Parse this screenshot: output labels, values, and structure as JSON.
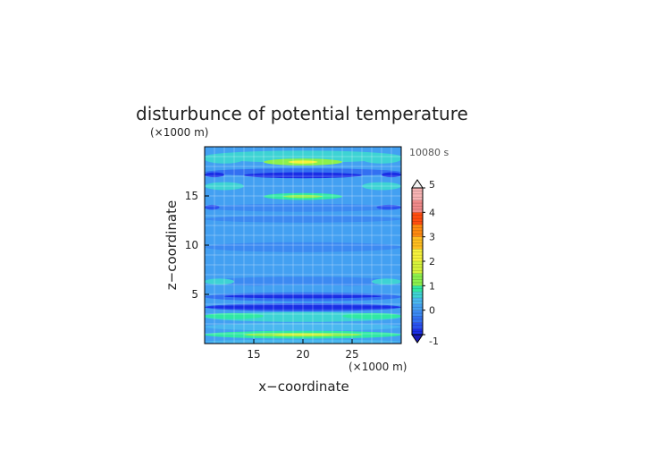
{
  "chart_data": {
    "type": "heatmap",
    "title": "disturbunce of potential temperature",
    "time_label": "10080 s",
    "xlabel": "x−coordinate",
    "ylabel": "z−coordinate",
    "x_unit": "(×1000 m)",
    "y_unit": "(×1000 m)",
    "xlim": [
      10,
      30
    ],
    "ylim": [
      0,
      20
    ],
    "x_ticks": [
      15,
      20,
      25
    ],
    "y_ticks": [
      5,
      10,
      15
    ],
    "grid": true,
    "colorbar": {
      "min": -1,
      "max": 5,
      "ticks": [
        -1,
        0,
        1,
        2,
        3,
        4,
        5
      ],
      "levels": [
        {
          "from": -1.0,
          "to": -0.75,
          "color": "#1a2ee6"
        },
        {
          "from": -0.75,
          "to": -0.5,
          "color": "#2a52ef"
        },
        {
          "from": -0.5,
          "to": -0.25,
          "color": "#3370f2"
        },
        {
          "from": -0.25,
          "to": 0.0,
          "color": "#3c8af2"
        },
        {
          "from": 0.0,
          "to": 0.25,
          "color": "#43a0f2"
        },
        {
          "from": 0.25,
          "to": 0.5,
          "color": "#4ab8f0"
        },
        {
          "from": 0.5,
          "to": 0.75,
          "color": "#3ed3d4"
        },
        {
          "from": 0.75,
          "to": 1.0,
          "color": "#30e8a4"
        },
        {
          "from": 1.0,
          "to": 1.5,
          "color": "#8cf04c"
        },
        {
          "from": 1.5,
          "to": 2.0,
          "color": "#d6f23a"
        },
        {
          "from": 2.0,
          "to": 2.5,
          "color": "#f6f23c"
        },
        {
          "from": 2.5,
          "to": 3.0,
          "color": "#ffbe20"
        },
        {
          "from": 3.0,
          "to": 3.5,
          "color": "#ff8a10"
        },
        {
          "from": 3.5,
          "to": 4.0,
          "color": "#ff4d10"
        },
        {
          "from": 4.0,
          "to": 4.5,
          "color": "#f08a8a"
        },
        {
          "from": 4.5,
          "to": 5.0,
          "color": "#f8b4b4"
        }
      ],
      "under_color": "#1a1ab8",
      "over_color": "#f2f2f2"
    },
    "features": [
      {
        "x": [
          10,
          30
        ],
        "z": [
          18.4,
          19.6
        ],
        "value": 0.6
      },
      {
        "x": [
          16,
          24
        ],
        "z": [
          18.1,
          18.8
        ],
        "value": 1.3
      },
      {
        "x": [
          18.5,
          21.5
        ],
        "z": [
          18.3,
          18.6
        ],
        "value": 2.2
      },
      {
        "x": [
          10,
          14
        ],
        "z": [
          18.3,
          19.2
        ],
        "value": 0.5
      },
      {
        "x": [
          26,
          30
        ],
        "z": [
          18.3,
          19.2
        ],
        "value": 0.5
      },
      {
        "x": [
          10,
          30
        ],
        "z": [
          17.0,
          17.8
        ],
        "value": -0.4
      },
      {
        "x": [
          14,
          26
        ],
        "z": [
          16.8,
          17.4
        ],
        "value": -0.9
      },
      {
        "x": [
          10,
          12
        ],
        "z": [
          16.9,
          17.4
        ],
        "value": -0.8
      },
      {
        "x": [
          28,
          30
        ],
        "z": [
          16.9,
          17.4
        ],
        "value": -0.8
      },
      {
        "x": [
          10,
          14
        ],
        "z": [
          15.6,
          16.4
        ],
        "value": 0.6
      },
      {
        "x": [
          26,
          30
        ],
        "z": [
          15.6,
          16.4
        ],
        "value": 0.6
      },
      {
        "x": [
          16,
          24
        ],
        "z": [
          14.6,
          15.3
        ],
        "value": 0.8
      },
      {
        "x": [
          18,
          22
        ],
        "z": [
          14.8,
          15.1
        ],
        "value": 1.2
      },
      {
        "x": [
          10,
          30
        ],
        "z": [
          13.4,
          14.2
        ],
        "value": -0.2
      },
      {
        "x": [
          10,
          11.5
        ],
        "z": [
          13.6,
          14.1
        ],
        "value": -0.7
      },
      {
        "x": [
          27.5,
          30
        ],
        "z": [
          13.6,
          14.1
        ],
        "value": -0.7
      },
      {
        "x": [
          10,
          30
        ],
        "z": [
          12.3,
          13.0
        ],
        "value": -0.15
      },
      {
        "x": [
          15.5,
          24.5
        ],
        "z": [
          7.5,
          11.2
        ],
        "value": 0.1
      },
      {
        "x": [
          10,
          30
        ],
        "z": [
          9.3,
          10.3
        ],
        "value": -0.05
      },
      {
        "x": [
          10,
          30
        ],
        "z": [
          5.8,
          6.8
        ],
        "value": -0.1
      },
      {
        "x": [
          10,
          13
        ],
        "z": [
          6.0,
          6.6
        ],
        "value": 0.6
      },
      {
        "x": [
          27,
          30
        ],
        "z": [
          6.0,
          6.6
        ],
        "value": 0.6
      },
      {
        "x": [
          14,
          26
        ],
        "z": [
          5.2,
          6.0
        ],
        "value": 0.1
      },
      {
        "x": [
          10,
          30
        ],
        "z": [
          4.3,
          5.2
        ],
        "value": -0.4
      },
      {
        "x": [
          12,
          28
        ],
        "z": [
          4.6,
          5.0
        ],
        "value": -0.8
      },
      {
        "x": [
          10,
          30
        ],
        "z": [
          3.3,
          4.1
        ],
        "value": -0.6
      },
      {
        "x": [
          10,
          30
        ],
        "z": [
          3.5,
          3.9
        ],
        "value": -0.95
      },
      {
        "x": [
          10,
          30
        ],
        "z": [
          2.2,
          3.2
        ],
        "value": 0.7
      },
      {
        "x": [
          10,
          16
        ],
        "z": [
          2.5,
          3.1
        ],
        "value": 0.9
      },
      {
        "x": [
          24,
          30
        ],
        "z": [
          2.5,
          3.1
        ],
        "value": 0.9
      },
      {
        "x": [
          10,
          30
        ],
        "z": [
          1.3,
          2.1
        ],
        "value": 0.3
      },
      {
        "x": [
          10,
          30
        ],
        "z": [
          0.5,
          1.3
        ],
        "value": 0.8
      },
      {
        "x": [
          14,
          26
        ],
        "z": [
          0.7,
          1.1
        ],
        "value": 1.4
      },
      {
        "x": [
          17,
          23
        ],
        "z": [
          0.8,
          1.0
        ],
        "value": 1.9
      },
      {
        "x": [
          10,
          30
        ],
        "z": [
          0.0,
          0.4
        ],
        "value": 0.3
      }
    ]
  }
}
